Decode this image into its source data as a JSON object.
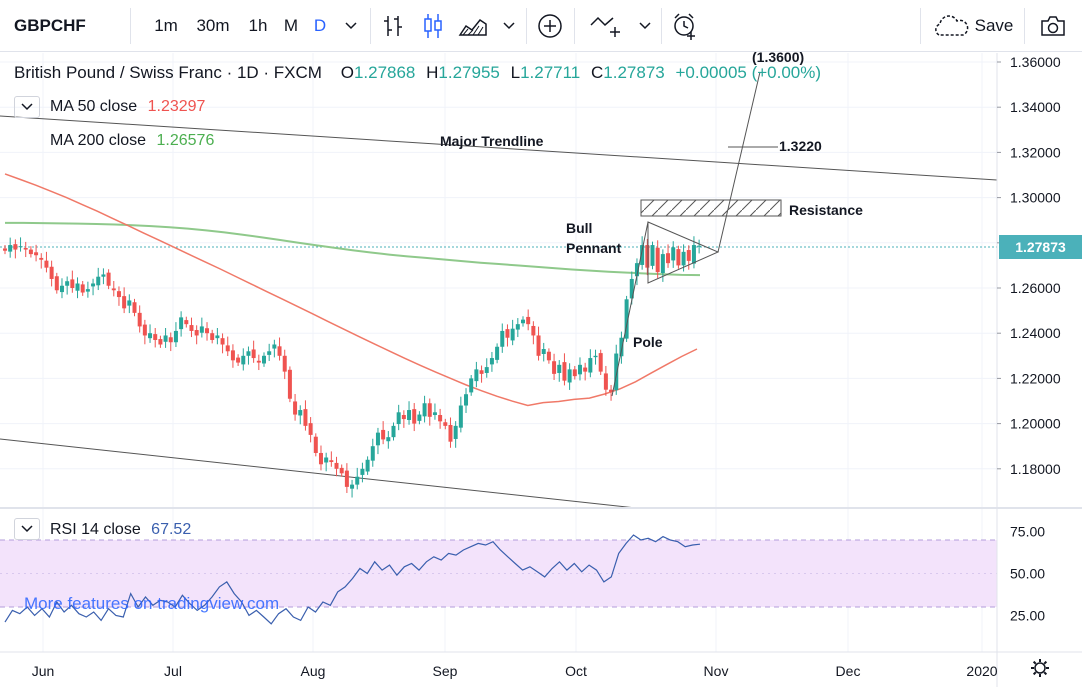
{
  "toolbar": {
    "symbol": "GBPCHF",
    "intervals": [
      "1m",
      "30m",
      "1h",
      "M",
      "D"
    ],
    "active_interval": "D",
    "save_label": "Save",
    "icons": [
      "chevron-down-icon",
      "bar-style-icon",
      "candle-style-icon",
      "area-style-icon",
      "chevron-down-icon",
      "add-indicator-icon",
      "compare-icon",
      "chevron-down-icon",
      "alert-icon",
      "cloud-save-icon",
      "camera-icon"
    ]
  },
  "legend": {
    "title": "British Pound / Swiss Franc · 1D · FXCM",
    "open": "1.27868",
    "high": "1.27955",
    "low": "1.27711",
    "close": "1.27873",
    "change": "+0.00005 (+0.00%)",
    "ma50_label": "MA  50 close",
    "ma50_value": "1.23297",
    "ma200_label": "MA  200 close",
    "ma200_value": "1.26576"
  },
  "rsi_legend": {
    "label": "RSI  14 close",
    "value": "67.52"
  },
  "watermark": "More features on tradingview.com",
  "colors": {
    "up": "#26a69a",
    "down": "#ef5350",
    "ma50": "#f07968",
    "ma200": "#8fc98b",
    "rsi": "#3a5fae",
    "rsi_band": "#f3e3fb",
    "last_price": "#4bb1ba",
    "accent": "#2962ff"
  },
  "chart_data": [
    {
      "type": "candlestick",
      "title": "British Pound / Swiss Franc · 1D · FXCM",
      "ylim": [
        1.167,
        1.3675
      ],
      "y_ticks": [
        "1.36000",
        "1.34000",
        "1.32000",
        "1.30000",
        "1.28000",
        "1.26000",
        "1.24000",
        "1.22000",
        "1.20000",
        "1.18000"
      ],
      "x_ticks": [
        "Jun",
        "Jul",
        "Aug",
        "Sep",
        "Oct",
        "Nov",
        "Dec",
        "2020"
      ],
      "last_price": "1.27873",
      "series": [
        {
          "name": "GBPCHF",
          "close": [
            1.2765,
            1.279,
            1.277,
            1.2785,
            1.277,
            1.275,
            1.2745,
            1.2725,
            1.269,
            1.264,
            1.259,
            1.261,
            1.263,
            1.26,
            1.262,
            1.258,
            1.2595,
            1.262,
            1.265,
            1.266,
            1.261,
            1.259,
            1.256,
            1.251,
            1.2545,
            1.249,
            1.243,
            1.239,
            1.24,
            1.237,
            1.235,
            1.239,
            1.236,
            1.241,
            1.247,
            1.244,
            1.241,
            1.239,
            1.243,
            1.24,
            1.237,
            1.239,
            1.235,
            1.232,
            1.228,
            1.227,
            1.23,
            1.232,
            1.229,
            1.227,
            1.23,
            1.232,
            1.235,
            1.23,
            1.223,
            1.211,
            1.204,
            1.206,
            1.199,
            1.195,
            1.187,
            1.182,
            1.185,
            1.183,
            1.18,
            1.178,
            1.172,
            1.173,
            1.1765,
            1.18,
            1.184,
            1.19,
            1.196,
            1.193,
            1.194,
            1.199,
            1.205,
            1.202,
            1.206,
            1.2,
            1.204,
            1.209,
            1.203,
            1.205,
            1.201,
            1.199,
            1.192,
            1.199,
            1.208,
            1.213,
            1.22,
            1.224,
            1.222,
            1.225,
            1.229,
            1.234,
            1.241,
            1.238,
            1.242,
            1.244,
            1.246,
            1.244,
            1.239,
            1.23,
            1.233,
            1.228,
            1.222,
            1.226,
            1.219,
            1.224,
            1.221,
            1.226,
            1.223,
            1.229,
            1.23,
            1.223,
            1.215,
            1.214,
            1.231,
            1.238,
            1.255,
            1.264,
            1.271,
            1.279,
            1.269,
            1.279,
            1.267,
            1.275,
            1.271,
            1.278,
            1.27,
            1.276,
            1.272,
            1.279,
            1.2787
          ],
          "ma50": [
            1.3105,
            1.308,
            1.3055,
            1.3028,
            1.3,
            1.297,
            1.294,
            1.2908,
            1.2876,
            1.2844,
            1.2812,
            1.278,
            1.2748,
            1.2716,
            1.2684,
            1.2651,
            1.2618,
            1.2585,
            1.2552,
            1.2519,
            1.2486,
            1.2452,
            1.2419,
            1.2386,
            1.2353,
            1.2321,
            1.2289,
            1.2258,
            1.2228,
            1.2199,
            1.2171,
            1.2145,
            1.2121,
            1.2099,
            1.208,
            1.2093,
            1.2098,
            1.2107,
            1.2113,
            1.2131,
            1.2154,
            1.2185,
            1.2223,
            1.226,
            1.2297,
            1.233
          ],
          "ma200": [
            1.2888,
            1.2888,
            1.2887,
            1.2886,
            1.2885,
            1.2883,
            1.2881,
            1.2878,
            1.2874,
            1.2869,
            1.2863,
            1.2855,
            1.2846,
            1.2836,
            1.2825,
            1.2813,
            1.2801,
            1.2789,
            1.2778,
            1.2767,
            1.2757,
            1.2748,
            1.274,
            1.2733,
            1.2726,
            1.2719,
            1.2712,
            1.2706,
            1.27,
            1.2694,
            1.2688,
            1.2682,
            1.2677,
            1.2672,
            1.2668,
            1.2664,
            1.2661,
            1.2658,
            1.2657
          ],
          "rsi": [
            21,
            28,
            26,
            30,
            25,
            29,
            24,
            33,
            27,
            31,
            26,
            24,
            27,
            22,
            29,
            25,
            24,
            38,
            30,
            36,
            31,
            34,
            33,
            30,
            37,
            32,
            28,
            31,
            36,
            42,
            45,
            38,
            33,
            25,
            28,
            24,
            20,
            26,
            29,
            24,
            22,
            30,
            27,
            33,
            31,
            39,
            42,
            47,
            53,
            50,
            57,
            52,
            55,
            49,
            54,
            56,
            52,
            57,
            60,
            58,
            62,
            61,
            64,
            66,
            68,
            67,
            69,
            64,
            60,
            56,
            52,
            54,
            51,
            48,
            53,
            57,
            52,
            56,
            51,
            55,
            52,
            45,
            48,
            62,
            68,
            73,
            70,
            71,
            69,
            72,
            70,
            69,
            66,
            67,
            67.5
          ]
        }
      ],
      "annotations": [
        {
          "text": "(1.3600)",
          "value": 1.36
        },
        {
          "text": "1.3220",
          "value": 1.322
        },
        {
          "text": "Major Trendline"
        },
        {
          "text": "Resistance"
        },
        {
          "text": "Bull Pennant"
        },
        {
          "text": "Pole"
        }
      ]
    },
    {
      "type": "line",
      "title": "RSI 14 close",
      "ylim": [
        15,
        81
      ],
      "y_ticks": [
        "75.00",
        "50.00",
        "25.00"
      ],
      "band": [
        30,
        70
      ],
      "series": [
        {
          "name": "RSI",
          "last": 67.52
        }
      ]
    }
  ]
}
